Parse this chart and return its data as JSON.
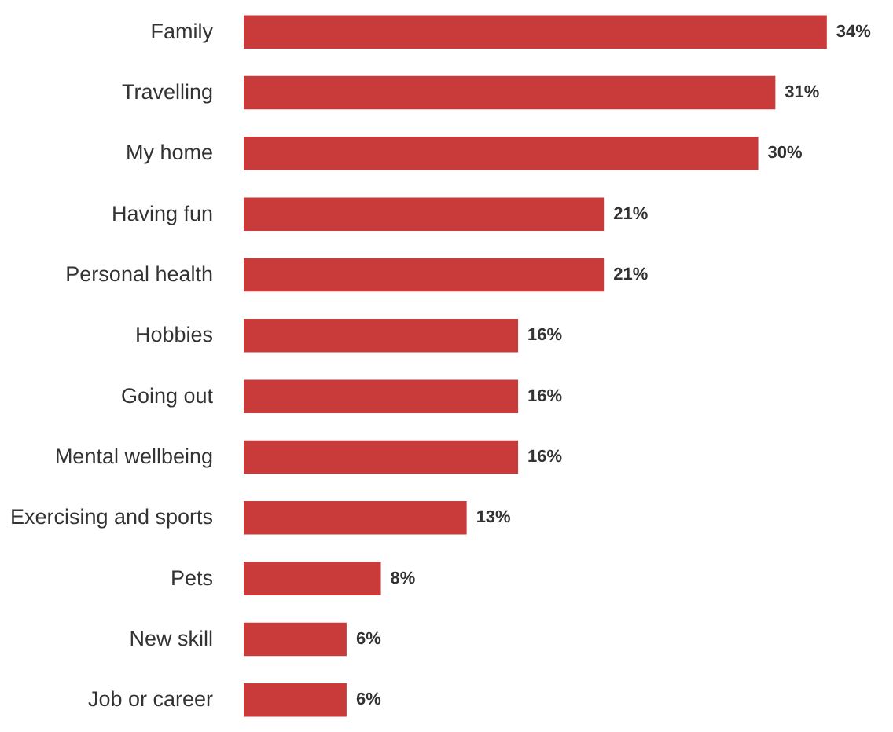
{
  "chart_data": {
    "type": "bar",
    "orientation": "horizontal",
    "categories": [
      "Family",
      "Travelling",
      "My home",
      "Having fun",
      "Personal health",
      "Hobbies",
      "Going out",
      "Mental wellbeing",
      "Exercising and sports",
      "Pets",
      "New skill",
      "Job or career"
    ],
    "values": [
      34,
      31,
      30,
      21,
      21,
      16,
      16,
      16,
      13,
      8,
      6,
      6
    ],
    "value_labels": [
      "34%",
      "31%",
      "30%",
      "21%",
      "21%",
      "16%",
      "16%",
      "16%",
      "13%",
      "8%",
      "6%",
      "6%"
    ],
    "color": "#c93a3a"
  }
}
